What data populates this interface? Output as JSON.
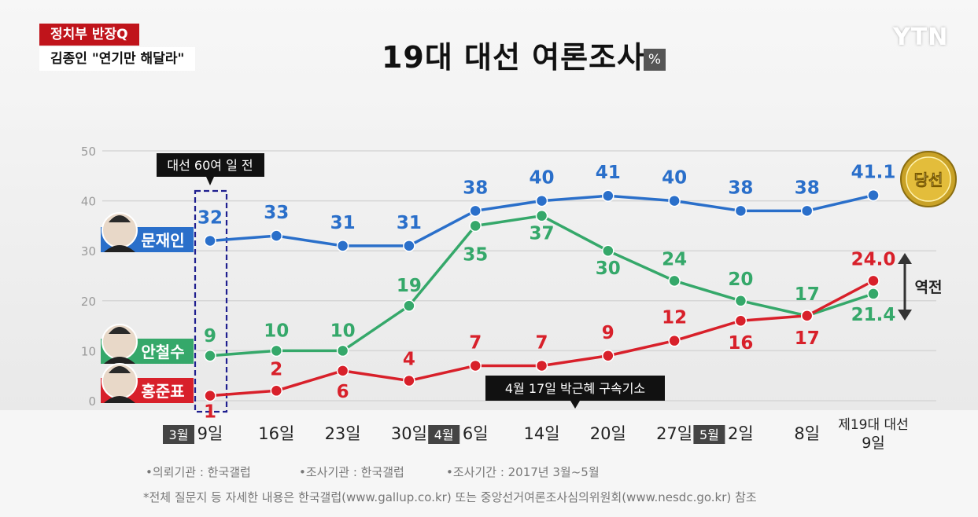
{
  "header": {
    "badge_program": "정치부 반장Q",
    "badge_headline": "김종인 \"연기만 해달라\"",
    "title": "19대 대선 여론조사",
    "unit": "%",
    "logo": "YTN"
  },
  "chart_data": {
    "type": "line",
    "title": "19대 대선 여론조사",
    "ylim": [
      0,
      50
    ],
    "y_ticks": [
      "0",
      "10",
      "20",
      "30",
      "40",
      "50"
    ],
    "grid": true,
    "x_labels": [
      {
        "month": "3월",
        "day": "9일"
      },
      {
        "month": "",
        "day": "16일"
      },
      {
        "month": "",
        "day": "23일"
      },
      {
        "month": "",
        "day": "30일"
      },
      {
        "month": "4월",
        "day": "6일"
      },
      {
        "month": "",
        "day": "14일"
      },
      {
        "month": "",
        "day": "20일"
      },
      {
        "month": "",
        "day": "27일"
      },
      {
        "month": "5월",
        "day": "2일"
      },
      {
        "month": "",
        "day": "8일"
      },
      {
        "month": "",
        "day": "제19대 대선\n9일"
      }
    ],
    "series": [
      {
        "name": "문재인",
        "color": "#2a6fca",
        "values": [
          32,
          33,
          31,
          31,
          38,
          40,
          41,
          40,
          38,
          38,
          41.1
        ],
        "labels": [
          "32",
          "33",
          "31",
          "31",
          "38",
          "40",
          "41",
          "40",
          "38",
          "38",
          "41.1"
        ]
      },
      {
        "name": "안철수",
        "color": "#35a86a",
        "values": [
          9,
          10,
          10,
          19,
          35,
          37,
          30,
          24,
          20,
          17,
          21.4
        ],
        "labels": [
          "9",
          "10",
          "10",
          "19",
          "35",
          "37",
          "30",
          "24",
          "20",
          "17",
          "21.4"
        ]
      },
      {
        "name": "홍준표",
        "color": "#d8202a",
        "values": [
          1,
          2,
          6,
          4,
          7,
          7,
          9,
          12,
          16,
          17,
          24.0
        ],
        "labels": [
          "1",
          "2",
          "6",
          "4",
          "7",
          "7",
          "9",
          "12",
          "16",
          "17",
          "24.0"
        ]
      }
    ],
    "annotations": {
      "start_box": "대선 60여 일 전",
      "event_box": "4월 17일 박근혜 구속기소",
      "winner_medal": "당선",
      "reversal": "역전"
    }
  },
  "footer": {
    "source1": "•의뢰기관 : 한국갤럽",
    "source2": "•조사기관 : 한국갤럽",
    "source3": "•조사기간 : 2017년 3월~5월",
    "note": "*전체 질문지 등 자세한 내용은 한국갤럽(www.gallup.co.kr) 또는 중앙선거여론조사심의위원회(www.nesdc.go.kr) 참조"
  }
}
